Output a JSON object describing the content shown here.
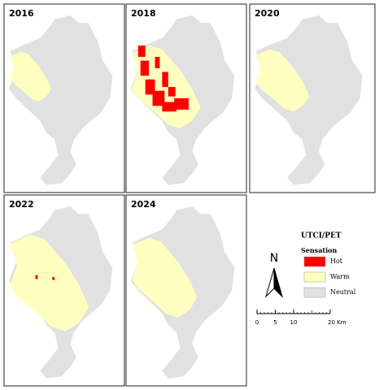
{
  "panels": [
    {
      "year": "2016"
    },
    {
      "year": "2018"
    },
    {
      "year": "2020"
    },
    {
      "year": "2022"
    },
    {
      "year": "2024"
    }
  ],
  "legend": {
    "title": "UTCI/PET",
    "subtitle": "Sensation",
    "items": [
      {
        "label": "Hot",
        "color": "#ff0000"
      },
      {
        "label": "Warm",
        "color": "#ffffbe"
      },
      {
        "label": "Neutral",
        "color": "#e1e1e1"
      }
    ]
  },
  "north": "N",
  "scale_bar": {
    "ticks": [
      0,
      5,
      10,
      {
        "value": 20,
        "label": "20 Km"
      }
    ]
  }
}
